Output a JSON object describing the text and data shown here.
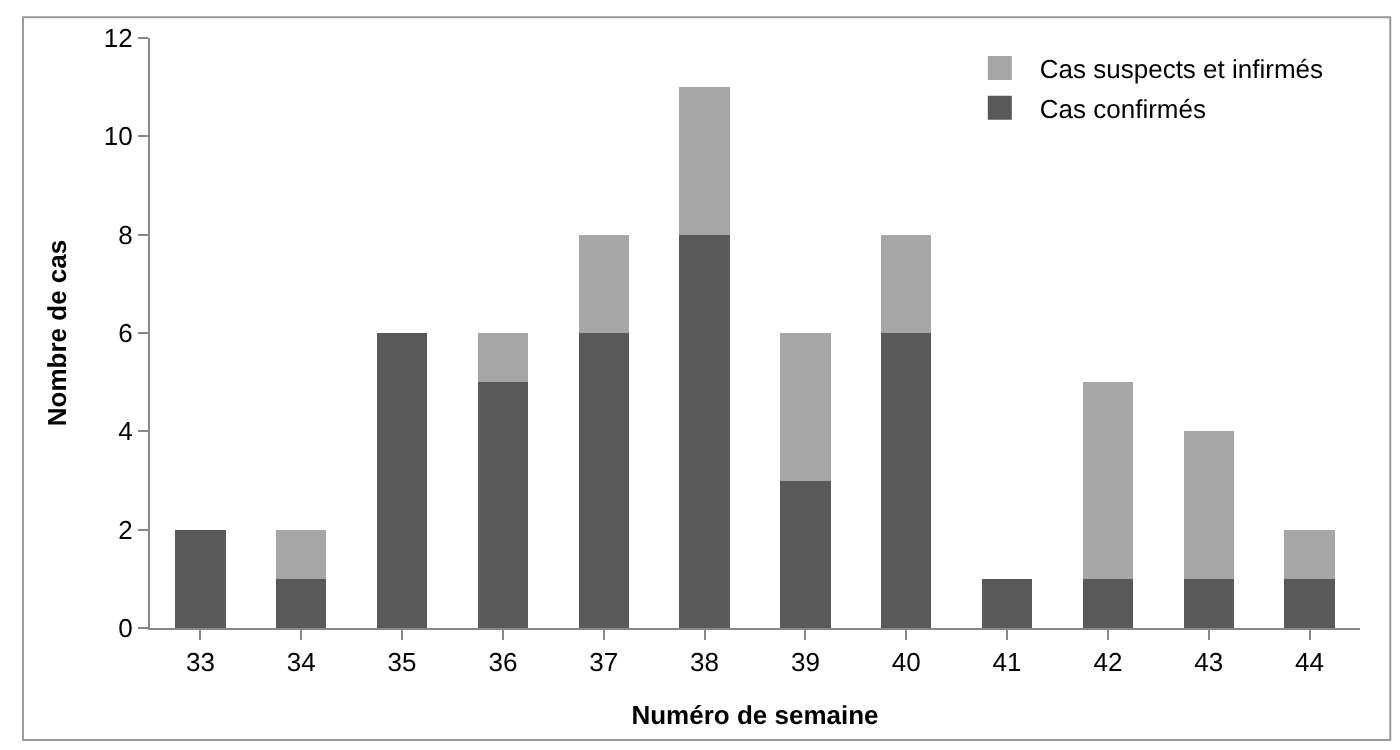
{
  "chart_data": {
    "type": "bar",
    "stacked": true,
    "xlabel": "Numéro de semaine",
    "ylabel": "Nombre de cas",
    "categories": [
      "33",
      "34",
      "35",
      "36",
      "37",
      "38",
      "39",
      "40",
      "41",
      "42",
      "43",
      "44"
    ],
    "series": [
      {
        "name": "Cas confirmés",
        "color": "#595959",
        "values": [
          2,
          1,
          6,
          5,
          6,
          8,
          3,
          6,
          1,
          1,
          1,
          1
        ]
      },
      {
        "name": "Cas suspects et infirmés",
        "color": "#a6a6a6",
        "values": [
          0,
          1,
          0,
          1,
          2,
          3,
          3,
          2,
          0,
          4,
          3,
          1
        ]
      }
    ],
    "ylim": [
      0,
      12
    ],
    "yticks": [
      0,
      2,
      4,
      6,
      8,
      10,
      12
    ],
    "legend": "top right"
  }
}
